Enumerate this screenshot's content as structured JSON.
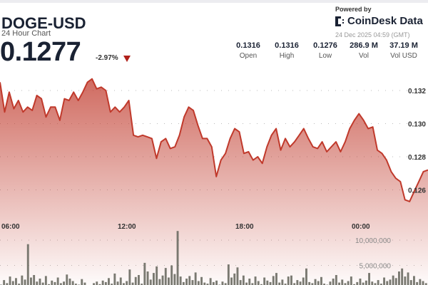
{
  "header": {
    "symbol": "DOGE-USD",
    "subtitle": "24 Hour Chart",
    "price": "0.1277",
    "change": "-2.97%",
    "change_direction": "down",
    "down_color": "#b0201a"
  },
  "branding": {
    "powered_by": "Powered by",
    "brand": "CoinDesk Data",
    "timestamp": "24 Dec 2025 04:59 (GMT)"
  },
  "stats": [
    {
      "value": "0.1316",
      "label": "Open"
    },
    {
      "value": "0.1316",
      "label": "High"
    },
    {
      "value": "0.1276",
      "label": "Low"
    },
    {
      "value": "286.9 M",
      "label": "Vol"
    },
    {
      "value": "37.19 M",
      "label": "Vol USD"
    }
  ],
  "chart_data": {
    "type": "area",
    "line_color": "#c0392b",
    "volume_color": "#6b6b63",
    "x_tick_labels": [
      "06:00",
      "12:00",
      "18:00",
      "00:00"
    ],
    "price_tick_labels": [
      "0.132",
      "0.130",
      "0.128",
      "0.126"
    ],
    "price_ticks": [
      0.132,
      0.13,
      0.128,
      0.126
    ],
    "volume_tick_labels": [
      "10,000,000",
      "5,000,000"
    ],
    "volume_ticks": [
      10000000,
      5000000
    ],
    "grid": "dotted horizontal",
    "price": [
      0.1325,
      0.1307,
      0.1319,
      0.1309,
      0.1314,
      0.1307,
      0.131,
      0.1308,
      0.1317,
      0.1315,
      0.1304,
      0.131,
      0.131,
      0.1302,
      0.1315,
      0.1314,
      0.1319,
      0.1314,
      0.1319,
      0.1325,
      0.1327,
      0.1321,
      0.1322,
      0.132,
      0.1307,
      0.131,
      0.1307,
      0.131,
      0.1314,
      0.1293,
      0.1292,
      0.1293,
      0.1292,
      0.1291,
      0.1279,
      0.1289,
      0.1291,
      0.1285,
      0.1286,
      0.1293,
      0.1304,
      0.131,
      0.1308,
      0.1299,
      0.1291,
      0.1291,
      0.1286,
      0.1268,
      0.1278,
      0.1282,
      0.1291,
      0.1297,
      0.1295,
      0.1282,
      0.1283,
      0.1278,
      0.128,
      0.1276,
      0.1286,
      0.1293,
      0.1297,
      0.1284,
      0.1291,
      0.1286,
      0.1289,
      0.1293,
      0.1297,
      0.1291,
      0.1286,
      0.1285,
      0.1289,
      0.1283,
      0.1286,
      0.1289,
      0.1283,
      0.1289,
      0.1297,
      0.1302,
      0.1306,
      0.1302,
      0.1297,
      0.1298,
      0.1284,
      0.1282,
      0.1278,
      0.1271,
      0.1267,
      0.1265,
      0.1254,
      0.1253,
      0.1259,
      0.1265,
      0.1271,
      0.1272
    ],
    "volume_millions": [
      1.2,
      2.1,
      1.5,
      2.8,
      1.9,
      2.5,
      1.4,
      3.0,
      2.2,
      9.2,
      2.6,
      3.1,
      1.8,
      2.4,
      1.6,
      2.9,
      1.3,
      2.0,
      1.7,
      2.6,
      1.5,
      1.8,
      3.2,
      2.4,
      1.9,
      1.4,
      1.2,
      2.3,
      1.6,
      1.1,
      0.9,
      1.5,
      1.8,
      1.3,
      2.0,
      1.7,
      2.5,
      1.4,
      3.4,
      1.8,
      2.6,
      1.5,
      1.9,
      4.2,
      1.6,
      2.7,
      3.1,
      1.4,
      5.5,
      3.8,
      2.2,
      3.5,
      4.8,
      2.3,
      3.0,
      4.5,
      2.6,
      5.0,
      3.3,
      11.8,
      2.8,
      1.7,
      2.4,
      2.9,
      2.1,
      3.6,
      1.9,
      2.7,
      1.6,
      1.4,
      2.5,
      1.7,
      2.0,
      1.2,
      1.8,
      1.5,
      5.2,
      2.6,
      3.4,
      4.6,
      2.1,
      3.0,
      1.6,
      2.4,
      1.5,
      2.8,
      1.9,
      1.3,
      2.6,
      2.0,
      1.7,
      2.9,
      3.5,
      1.6,
      2.2,
      1.4,
      2.8,
      3.0,
      1.5,
      2.1,
      1.8,
      2.6,
      4.4,
      1.7,
      1.5,
      2.3,
      1.9,
      2.7,
      1.4,
      1.2,
      1.8,
      2.4,
      3.1,
      1.6,
      2.2,
      1.5,
      1.9,
      2.8,
      1.3,
      1.7,
      2.4,
      1.6,
      2.0,
      3.5,
      1.8,
      1.5,
      2.1,
      1.4,
      2.6,
      1.9,
      2.2,
      3.0,
      2.5,
      3.8,
      4.4,
      2.8,
      3.6,
      2.1,
      2.9,
      1.7,
      2.3,
      1.9,
      1.5
    ]
  }
}
